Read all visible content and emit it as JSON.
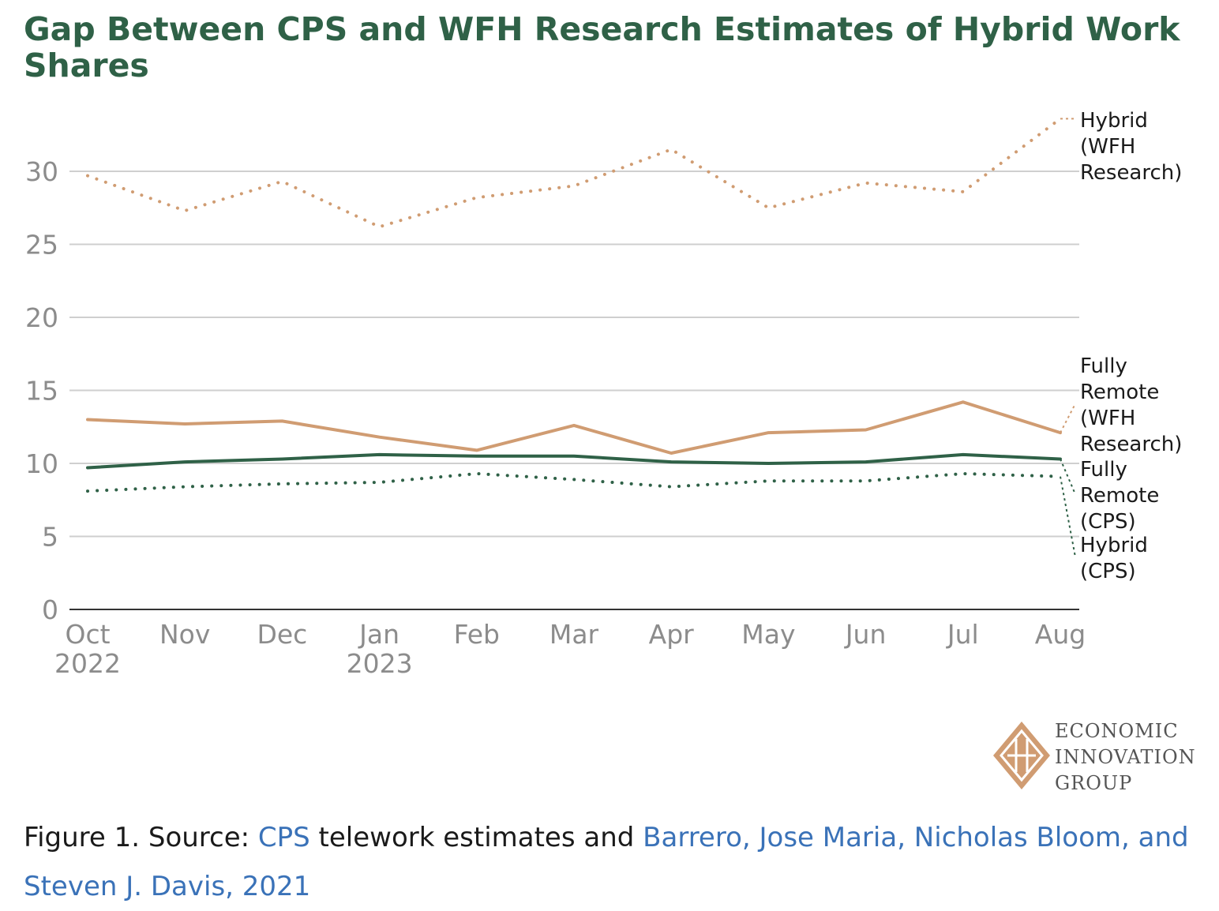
{
  "title": "Gap Between CPS and WFH Research Estimates of Hybrid Work Shares",
  "chart_data": {
    "type": "line",
    "title": "Gap Between CPS and WFH Research Estimates of Hybrid Work Shares",
    "categories": [
      "Oct 2022",
      "Nov",
      "Dec",
      "Jan 2023",
      "Feb",
      "Mar",
      "Apr",
      "May",
      "Jun",
      "Jul",
      "Aug"
    ],
    "x_tick_labels": [
      [
        "Oct",
        "2022"
      ],
      [
        "Nov"
      ],
      [
        "Dec"
      ],
      [
        "Jan",
        "2023"
      ],
      [
        "Feb"
      ],
      [
        "Mar"
      ],
      [
        "Apr"
      ],
      [
        "May"
      ],
      [
        "Jun"
      ],
      [
        "Jul"
      ],
      [
        "Aug"
      ]
    ],
    "y_ticks": [
      "0",
      "5",
      "10",
      "15",
      "20",
      "25",
      "30"
    ],
    "ylim": [
      0,
      30
    ],
    "grid": true,
    "legend": "direct labels right of lines",
    "series": [
      {
        "name": "Hybrid (WFH Research)",
        "label_lines": [
          "Hybrid",
          "(WFH",
          "Research)"
        ],
        "style": "dotted",
        "color": "#d09c72",
        "values": [
          29.7,
          27.3,
          29.3,
          26.2,
          28.2,
          29.0,
          31.5,
          27.5,
          29.2,
          28.6,
          33.6
        ]
      },
      {
        "name": "Fully Remote (WFH Research)",
        "label_lines": [
          "Fully",
          "Remote",
          "(WFH",
          "Research)"
        ],
        "style": "solid",
        "color": "#d09c72",
        "values": [
          13.0,
          12.7,
          12.9,
          11.8,
          10.9,
          12.6,
          10.7,
          12.1,
          12.3,
          14.2,
          12.1
        ]
      },
      {
        "name": "Fully Remote (CPS)",
        "label_lines": [
          "Fully",
          "Remote",
          "(CPS)"
        ],
        "style": "solid",
        "color": "#2f6147",
        "values": [
          9.7,
          10.1,
          10.3,
          10.6,
          10.5,
          10.5,
          10.1,
          10.0,
          10.1,
          10.6,
          10.3
        ]
      },
      {
        "name": "Hybrid (CPS)",
        "label_lines": [
          "Hybrid",
          "(CPS)"
        ],
        "style": "dotted",
        "color": "#2f6147",
        "values": [
          8.1,
          8.4,
          8.6,
          8.7,
          9.3,
          8.9,
          8.4,
          8.8,
          8.8,
          9.3,
          9.1
        ]
      }
    ]
  },
  "logo": {
    "lines": [
      "ECONOMIC",
      "INNOVATION",
      "GROUP"
    ],
    "color": "#d09c72"
  },
  "caption": {
    "prefix": "Figure 1. Source: ",
    "link1": "CPS",
    "middle": " telework estimates and ",
    "link2": "Barrero, Jose Maria, Nicholas Bloom, and Steven J. Davis, 2021"
  }
}
